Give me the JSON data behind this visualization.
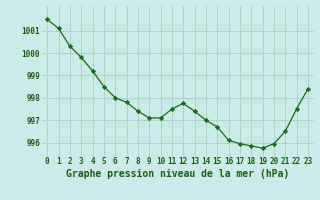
{
  "x": [
    0,
    1,
    2,
    3,
    4,
    5,
    6,
    7,
    8,
    9,
    10,
    11,
    12,
    13,
    14,
    15,
    16,
    17,
    18,
    19,
    20,
    21,
    22,
    23
  ],
  "y": [
    1001.5,
    1001.1,
    1000.3,
    999.8,
    999.2,
    998.5,
    998.0,
    997.8,
    997.4,
    997.1,
    997.1,
    997.5,
    997.75,
    997.4,
    997.0,
    996.7,
    996.1,
    995.95,
    995.85,
    995.75,
    995.95,
    996.5,
    997.5,
    998.4
  ],
  "line_color": "#1a6b1a",
  "marker": "D",
  "marker_size": 2.2,
  "bg_color": "#cceae7",
  "grid_color": "#aad4cc",
  "ylabel_values": [
    996,
    997,
    998,
    999,
    1000,
    1001
  ],
  "xlabel_label": "Graphe pression niveau de la mer (hPa)",
  "ylim": [
    995.4,
    1002.1
  ],
  "xlim": [
    -0.5,
    23.5
  ],
  "label_color": "#1a5c1a",
  "tick_fontsize": 5.5,
  "xlabel_fontsize": 7.0
}
